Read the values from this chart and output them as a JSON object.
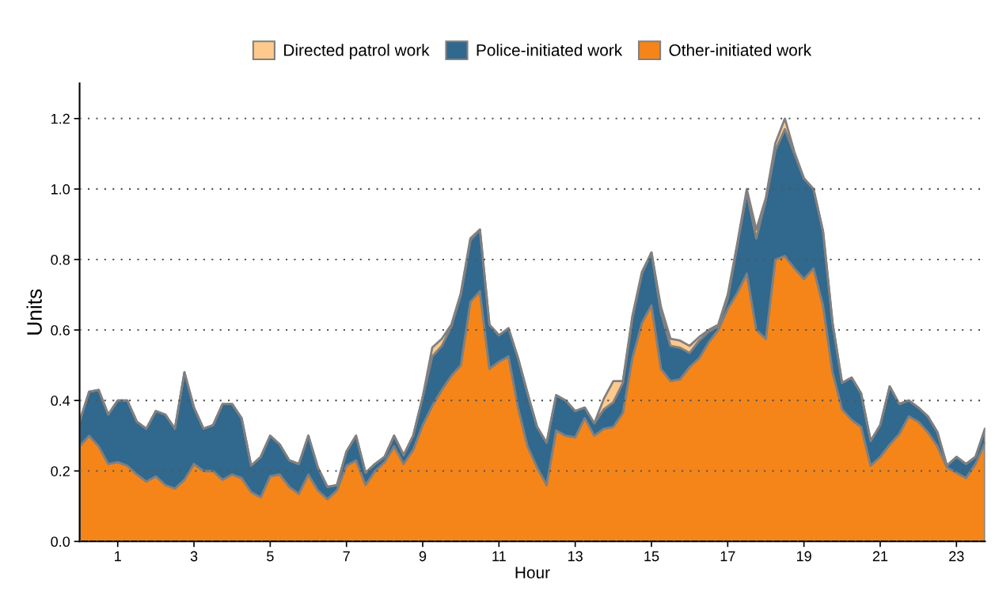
{
  "chart_data": {
    "type": "area",
    "stacked": true,
    "xlabel": "Hour",
    "ylabel": "Units",
    "x": [
      0,
      0.25,
      0.5,
      0.75,
      1,
      1.25,
      1.5,
      1.75,
      2,
      2.25,
      2.5,
      2.75,
      3,
      3.25,
      3.5,
      3.75,
      4,
      4.25,
      4.5,
      4.75,
      5,
      5.25,
      5.5,
      5.75,
      6,
      6.25,
      6.5,
      6.75,
      7,
      7.25,
      7.5,
      7.75,
      8,
      8.25,
      8.5,
      8.75,
      9,
      9.25,
      9.5,
      9.75,
      10,
      10.25,
      10.5,
      10.75,
      11,
      11.25,
      11.5,
      11.75,
      12,
      12.25,
      12.5,
      12.75,
      13,
      13.25,
      13.5,
      13.75,
      14,
      14.25,
      14.5,
      14.75,
      15,
      15.25,
      15.5,
      15.75,
      16,
      16.25,
      16.5,
      16.75,
      17,
      17.25,
      17.5,
      17.75,
      18,
      18.25,
      18.5,
      18.75,
      19,
      19.25,
      19.5,
      19.75,
      20,
      20.25,
      20.5,
      20.75,
      21,
      21.25,
      21.5,
      21.75,
      22,
      22.25,
      22.5,
      22.75,
      23,
      23.25,
      23.5,
      23.75
    ],
    "series": [
      {
        "name": "Other-initiated work",
        "color": "#f58518",
        "values": [
          0.27,
          0.3,
          0.27,
          0.22,
          0.225,
          0.215,
          0.19,
          0.17,
          0.185,
          0.16,
          0.15,
          0.175,
          0.22,
          0.2,
          0.2,
          0.175,
          0.19,
          0.18,
          0.14,
          0.125,
          0.185,
          0.19,
          0.155,
          0.135,
          0.19,
          0.145,
          0.12,
          0.145,
          0.215,
          0.23,
          0.16,
          0.2,
          0.225,
          0.27,
          0.22,
          0.26,
          0.33,
          0.385,
          0.43,
          0.47,
          0.5,
          0.68,
          0.71,
          0.49,
          0.51,
          0.525,
          0.38,
          0.27,
          0.21,
          0.16,
          0.315,
          0.3,
          0.295,
          0.35,
          0.3,
          0.32,
          0.325,
          0.365,
          0.52,
          0.62,
          0.67,
          0.49,
          0.455,
          0.46,
          0.495,
          0.52,
          0.565,
          0.6,
          0.66,
          0.705,
          0.76,
          0.6,
          0.575,
          0.8,
          0.81,
          0.775,
          0.745,
          0.775,
          0.67,
          0.48,
          0.375,
          0.345,
          0.325,
          0.215,
          0.24,
          0.275,
          0.305,
          0.355,
          0.34,
          0.31,
          0.27,
          0.21,
          0.195,
          0.18,
          0.22,
          0.28
        ]
      },
      {
        "name": "Police-initiated work",
        "color": "#31688e",
        "values": [
          0.07,
          0.125,
          0.16,
          0.14,
          0.175,
          0.185,
          0.15,
          0.15,
          0.185,
          0.2,
          0.17,
          0.305,
          0.16,
          0.12,
          0.13,
          0.215,
          0.2,
          0.17,
          0.075,
          0.115,
          0.115,
          0.085,
          0.075,
          0.085,
          0.11,
          0.065,
          0.035,
          0.015,
          0.04,
          0.07,
          0.035,
          0.02,
          0.015,
          0.03,
          0.025,
          0.04,
          0.08,
          0.14,
          0.125,
          0.14,
          0.2,
          0.175,
          0.175,
          0.125,
          0.075,
          0.08,
          0.14,
          0.15,
          0.115,
          0.12,
          0.1,
          0.1,
          0.075,
          0.03,
          0.035,
          0.055,
          0.07,
          0.085,
          0.115,
          0.14,
          0.15,
          0.16,
          0.1,
          0.09,
          0.04,
          0.05,
          0.03,
          0.01,
          0.03,
          0.135,
          0.23,
          0.26,
          0.395,
          0.31,
          0.36,
          0.325,
          0.285,
          0.225,
          0.21,
          0.14,
          0.075,
          0.12,
          0.095,
          0.07,
          0.09,
          0.165,
          0.085,
          0.045,
          0.04,
          0.045,
          0.04,
          0.005,
          0.045,
          0.04,
          0.02,
          0.04
        ]
      },
      {
        "name": "Directed patrol work",
        "color": "#fdc98c",
        "values": [
          0,
          0,
          0,
          0,
          0,
          0,
          0,
          0,
          0,
          0,
          0,
          0,
          0,
          0,
          0,
          0,
          0,
          0,
          0,
          0,
          0,
          0,
          0,
          0,
          0,
          0,
          0,
          0,
          0,
          0,
          0,
          0,
          0,
          0,
          0,
          0,
          0,
          0.025,
          0.02,
          0.005,
          0.005,
          0.005,
          0,
          0,
          0,
          0,
          0,
          0,
          0,
          0,
          0,
          0,
          0,
          0,
          0,
          0.03,
          0.06,
          0.005,
          0.005,
          0.005,
          0,
          0.015,
          0.02,
          0.02,
          0.02,
          0.01,
          0.005,
          0.005,
          0.01,
          0.005,
          0.01,
          0.025,
          0.005,
          0.02,
          0.03,
          0.005,
          0,
          0,
          0,
          0,
          0,
          0,
          0,
          0,
          0,
          0,
          0,
          0,
          0,
          0,
          0,
          0,
          0,
          0,
          0,
          0
        ]
      }
    ],
    "xlim": [
      0,
      23.75
    ],
    "xticks": [
      1,
      3,
      5,
      7,
      9,
      11,
      13,
      15,
      17,
      19,
      21,
      23
    ],
    "ylim": [
      0,
      1.3
    ],
    "yticks": [
      {
        "value": 0,
        "label": "0.0"
      },
      {
        "value": 0.2,
        "label": "0.2"
      },
      {
        "value": 0.4,
        "label": "0.4"
      },
      {
        "value": 0.6,
        "label": "0.6"
      },
      {
        "value": 0.8,
        "label": "0.8"
      },
      {
        "value": 1.0,
        "label": "1.0"
      },
      {
        "value": 1.2,
        "label": "1.2"
      }
    ],
    "grid": "y",
    "legend": "top"
  }
}
